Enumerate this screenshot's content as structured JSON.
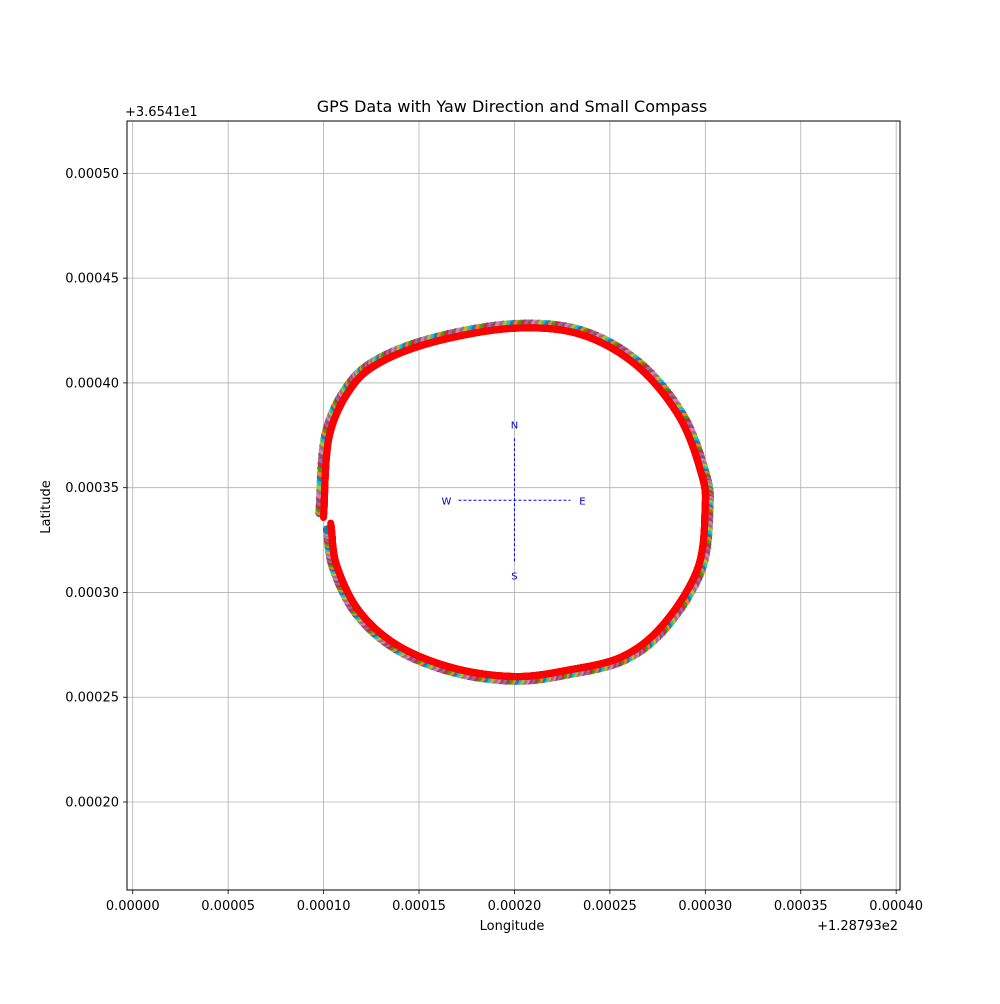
{
  "chart_data": {
    "type": "scatter",
    "title": "GPS Data with Yaw Direction and Small Compass",
    "xlabel": "Longitude",
    "ylabel": "Latitude",
    "x_offset_label": "+1.28793e2",
    "y_offset_label": "+3.6541e1",
    "xlim": [
      -3e-06,
      0.000402
    ],
    "ylim": [
      0.000158,
      0.000525
    ],
    "x_ticks": [
      0.0,
      5e-05,
      0.0001,
      0.00015,
      0.0002,
      0.00025,
      0.0003,
      0.00035,
      0.0004
    ],
    "x_tick_labels": [
      "0.00000",
      "0.00005",
      "0.00010",
      "0.00015",
      "0.00020",
      "0.00025",
      "0.00030",
      "0.00035",
      "0.00040"
    ],
    "y_ticks": [
      0.0002,
      0.00025,
      0.0003,
      0.00035,
      0.0004,
      0.00045,
      0.0005
    ],
    "y_tick_labels": [
      "0.00020",
      "0.00025",
      "0.00030",
      "0.00035",
      "0.00040",
      "0.00045",
      "0.00050"
    ],
    "grid": true,
    "track": {
      "description_points": [
        {
          "x": 9.8e-05,
          "y": 0.000338
        },
        {
          "x": 0.000101,
          "y": 0.000375
        },
        {
          "x": 0.000113,
          "y": 0.000399
        },
        {
          "x": 0.00013,
          "y": 0.000412
        },
        {
          "x": 0.00016,
          "y": 0.000422
        },
        {
          "x": 0.0002,
          "y": 0.000428
        },
        {
          "x": 0.000235,
          "y": 0.000425
        },
        {
          "x": 0.000265,
          "y": 0.00041
        },
        {
          "x": 0.000288,
          "y": 0.000385
        },
        {
          "x": 0.0003,
          "y": 0.000357
        },
        {
          "x": 0.000302,
          "y": 0.00034
        },
        {
          "x": 0.000298,
          "y": 0.000311
        },
        {
          "x": 0.00028,
          "y": 0.000284
        },
        {
          "x": 0.000258,
          "y": 0.000268
        },
        {
          "x": 0.000228,
          "y": 0.000261
        },
        {
          "x": 0.0002,
          "y": 0.000258
        },
        {
          "x": 0.000168,
          "y": 0.000262
        },
        {
          "x": 0.000138,
          "y": 0.000273
        },
        {
          "x": 0.000117,
          "y": 0.00029
        },
        {
          "x": 0.000105,
          "y": 0.000312
        },
        {
          "x": 0.000102,
          "y": 0.00033
        }
      ],
      "yaw_arrow_color": "#ff0000",
      "point_colors": [
        "#1f77b4",
        "#ff7f0e",
        "#2ca02c",
        "#d62728",
        "#9467bd",
        "#8c564b",
        "#e377c2",
        "#7f7f7f",
        "#bcbd22",
        "#17becf"
      ]
    },
    "compass": {
      "center_x": 0.0002,
      "center_y": 0.000344,
      "labels": {
        "north": "N",
        "south": "S",
        "east": "E",
        "west": "W"
      },
      "color": "#0000ff"
    }
  }
}
